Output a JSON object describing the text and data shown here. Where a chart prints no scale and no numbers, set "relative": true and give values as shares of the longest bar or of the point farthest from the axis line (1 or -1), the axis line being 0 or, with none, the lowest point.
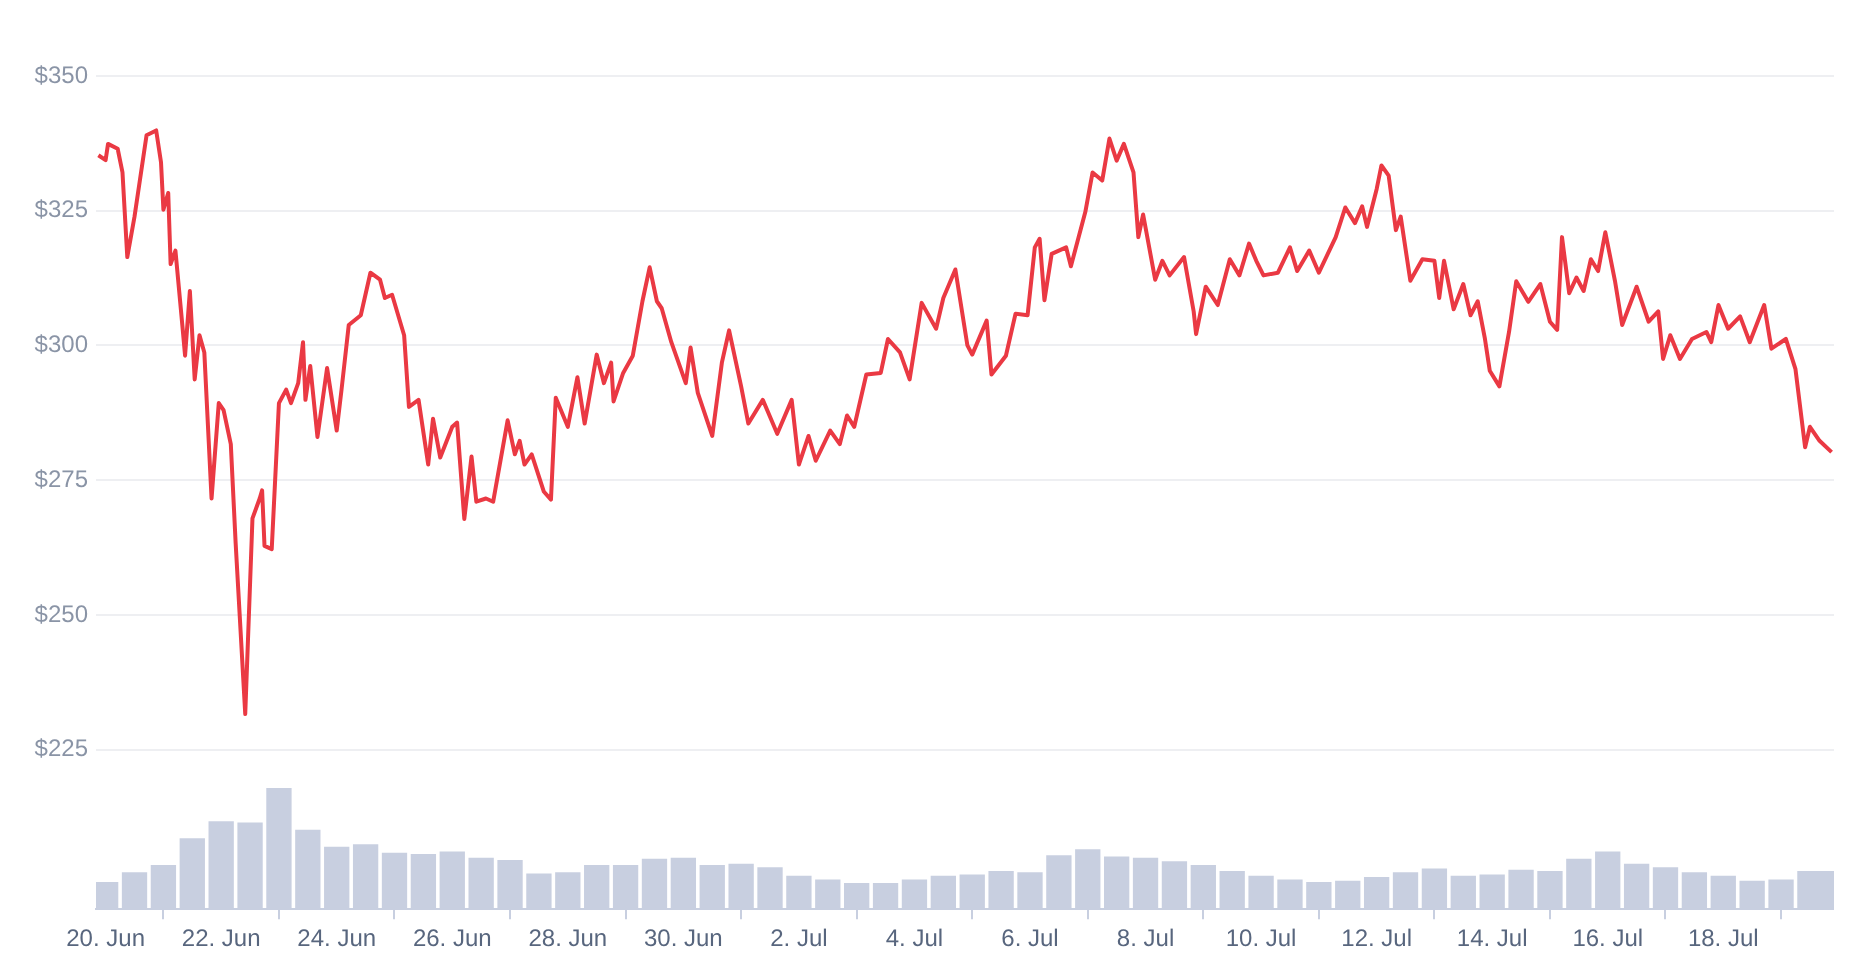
{
  "chart_data": [
    {
      "type": "line",
      "x": [
        "--06-19T21:00",
        "--06-20T00:00",
        "--06-20T01:00",
        "--06-20T05:00",
        "--06-20T07:00",
        "--06-20T09:00",
        "--06-20T12:00",
        "--06-20T17:00",
        "--06-20T21:00",
        "--06-20T23:00",
        "--06-21T00:00",
        "--06-21T02:00",
        "--06-21T03:00",
        "--06-21T05:00",
        "--06-21T08:00",
        "--06-21T09:00",
        "--06-21T11:00",
        "--06-21T13:00",
        "--06-21T15:00",
        "--06-21T17:00",
        "--06-21T20:00",
        "--06-21T23:00",
        "--06-22T01:00",
        "--06-22T04:00",
        "--06-22T06:00",
        "--06-22T10:00",
        "--06-22T13:00",
        "--06-22T16:00",
        "--06-22T17:00",
        "--06-22T18:00",
        "--06-22T21:00",
        "--06-23T00:00",
        "--06-23T03:00",
        "--06-23T05:00",
        "--06-23T08:00",
        "--06-23T10:00",
        "--06-23T11:00",
        "--06-23T13:00",
        "--06-23T16:00",
        "--06-23T20:00",
        "--06-24T00:00",
        "--06-24T02:00",
        "--06-24T05:00",
        "--06-24T10:00",
        "--06-24T14:00",
        "--06-24T18:00",
        "--06-24T20:00",
        "--06-24T23:00",
        "--06-25T04:00",
        "--06-25T06:00",
        "--06-25T10:00",
        "--06-25T14:00",
        "--06-25T16:00",
        "--06-25T19:00",
        "--06-26T00:00",
        "--06-26T02:00",
        "--06-26T05:00",
        "--06-26T08:00",
        "--06-26T10:00",
        "--06-26T14:00",
        "--06-26T17:00",
        "--06-26T23:00",
        "--06-27T02:00",
        "--06-27T04:00",
        "--06-27T06:00",
        "--06-27T09:00",
        "--06-27T14:00",
        "--06-27T17:00",
        "--06-27T19:00",
        "--06-28T00:00",
        "--06-28T04:00",
        "--06-28T07:00",
        "--06-28T12:00",
        "--06-28T15:00",
        "--06-28T18:00",
        "--06-28T19:00",
        "--06-28T23:00",
        "--06-29T03:00",
        "--06-29T07:00",
        "--06-29T10:00",
        "--06-29T13:00",
        "--06-29T15:00",
        "--06-29T19:00",
        "--06-30T01:00",
        "--06-30T03:00",
        "--06-30T06:00",
        "--06-30T12:00",
        "--06-30T16:00",
        "--06-30T19:00",
        "--07-01T00:00",
        "--07-01T03:00",
        "--07-01T09:00",
        "--07-01T15:00",
        "--07-01T21:00",
        "--07-02T00:00",
        "--07-02T04:00",
        "--07-02T07:00",
        "--07-02T13:00",
        "--07-02T17:00",
        "--07-02T20:00",
        "--07-02T23:00",
        "--07-03T04:00",
        "--07-03T10:00",
        "--07-03T13:00",
        "--07-03T18:00",
        "--07-03T22:00",
        "--07-04T03:00",
        "--07-04T09:00",
        "--07-04T12:00",
        "--07-04T17:00",
        "--07-04T22:00",
        "--07-05T00:00",
        "--07-05T06:00",
        "--07-05T08:00",
        "--07-05T14:00",
        "--07-05T18:00",
        "--07-05T23:00",
        "--07-06T02:00",
        "--07-06T04:00",
        "--07-06T06:00",
        "--07-06T09:00",
        "--07-06T15:00",
        "--07-06T17:00",
        "--07-06T23:00",
        "--07-07T02:00",
        "--07-07T06:00",
        "--07-07T09:00",
        "--07-07T12:00",
        "--07-07T15:00",
        "--07-07T19:00",
        "--07-07T21:00",
        "--07-07T23:00",
        "--07-08T04:00",
        "--07-08T07:00",
        "--07-08T10:00",
        "--07-08T16:00",
        "--07-08T20:00",
        "--07-08T21:00",
        "--07-09T01:00",
        "--07-09T06:00",
        "--07-09T11:00",
        "--07-09T15:00",
        "--07-09T19:00",
        "--07-09T22:00",
        "--07-10T01:00",
        "--07-10T07:00",
        "--07-10T12:00",
        "--07-10T15:00",
        "--07-10T20:00",
        "--07-11T00:00",
        "--07-11T07:00",
        "--07-11T11:00",
        "--07-11T15:00",
        "--07-11T18:00",
        "--07-11T20:00",
        "--07-12T00:00",
        "--07-12T02:00",
        "--07-12T05:00",
        "--07-12T08:00",
        "--07-12T10:00",
        "--07-12T14:00",
        "--07-12T19:00",
        "--07-13T00:00",
        "--07-13T02:00",
        "--07-13T04:00",
        "--07-13T08:00",
        "--07-13T12:00",
        "--07-13T15:00",
        "--07-13T18:00",
        "--07-13T21:00",
        "--07-13T23:00",
        "--07-14T03:00",
        "--07-14T07:00",
        "--07-14T10:00",
        "--07-14T15:00",
        "--07-14T20:00",
        "--07-15T00:00",
        "--07-15T03:00",
        "--07-15T05:00",
        "--07-15T08:00",
        "--07-15T11:00",
        "--07-15T14:00",
        "--07-15T17:00",
        "--07-15T20:00",
        "--07-15T23:00",
        "--07-16T03:00",
        "--07-16T06:00",
        "--07-16T12:00",
        "--07-16T17:00",
        "--07-16T21:00",
        "--07-16T23:00",
        "--07-17T02:00",
        "--07-17T06:00",
        "--07-17T11:00",
        "--07-17T17:00",
        "--07-17T19:00",
        "--07-17T22:00",
        "--07-18T02:00",
        "--07-18T07:00",
        "--07-18T11:00",
        "--07-18T17:00",
        "--07-18T20:00",
        "--07-19T02:00",
        "--07-19T06:00",
        "--07-19T10:00",
        "--07-19T12:00",
        "--07-19T16:00",
        "--07-19T21:00"
      ],
      "series": [
        {
          "color": "#ea3943",
          "values": [
            335.3,
            334.4,
            337.4,
            336.5,
            332.1,
            316.4,
            323.9,
            339.0,
            339.9,
            334.0,
            325.2,
            328.3,
            315.1,
            317.6,
            303.1,
            298.1,
            310.1,
            293.7,
            301.9,
            298.7,
            271.6,
            289.3,
            288.0,
            281.7,
            263.4,
            231.6,
            267.9,
            271.6,
            273.1,
            262.8,
            262.2,
            289.3,
            291.8,
            289.3,
            293.0,
            300.6,
            289.9,
            296.2,
            283.0,
            295.8,
            284.2,
            291.8,
            303.8,
            305.6,
            313.5,
            312.2,
            308.8,
            309.4,
            301.9,
            288.6,
            289.9,
            277.9,
            286.4,
            279.2,
            284.9,
            285.7,
            267.8,
            279.4,
            271.0,
            271.6,
            271.0,
            286.1,
            279.8,
            282.3,
            277.9,
            279.8,
            272.9,
            271.4,
            290.3,
            284.9,
            294.1,
            285.5,
            298.3,
            293.0,
            296.8,
            289.6,
            294.9,
            298.1,
            308.2,
            314.5,
            308.2,
            306.9,
            300.6,
            293.0,
            299.6,
            291.2,
            283.2,
            296.8,
            302.8,
            292.4,
            285.5,
            289.9,
            283.6,
            289.9,
            277.9,
            283.2,
            278.6,
            284.2,
            281.7,
            287.0,
            284.9,
            294.6,
            294.9,
            301.2,
            298.7,
            293.7,
            307.9,
            303.1,
            308.8,
            314.1,
            300.0,
            298.3,
            304.6,
            294.6,
            298.1,
            305.9,
            305.6,
            318.2,
            319.8,
            308.4,
            317.0,
            318.2,
            314.7,
            324.8,
            332.1,
            330.6,
            338.4,
            334.3,
            337.4,
            332.1,
            320.1,
            324.3,
            312.2,
            315.7,
            313.0,
            316.4,
            306.3,
            302.1,
            310.9,
            307.5,
            316.0,
            313.0,
            318.9,
            315.7,
            313.0,
            313.5,
            318.2,
            313.8,
            317.6,
            313.5,
            320.1,
            325.6,
            322.7,
            325.8,
            322.0,
            329.0,
            333.4,
            331.5,
            321.4,
            323.9,
            312.0,
            316.0,
            315.7,
            308.8,
            315.7,
            306.7,
            311.4,
            305.6,
            308.2,
            301.2,
            295.3,
            292.4,
            302.5,
            311.9,
            308.1,
            311.4,
            304.4,
            302.9,
            320.1,
            309.7,
            312.6,
            310.1,
            316.0,
            313.8,
            321.0,
            312.0,
            303.8,
            310.9,
            304.4,
            306.3,
            297.5,
            301.9,
            297.5,
            301.2,
            302.5,
            300.6,
            307.5,
            303.1,
            305.4,
            300.6,
            307.5,
            299.4,
            301.2,
            295.6,
            281.1,
            284.9,
            282.3,
            280.2
          ]
        }
      ],
      "xlim": [
        "--06-19T20:00",
        "--07-19T22:00"
      ],
      "ylim": [
        225,
        350
      ],
      "yticks": [
        {
          "value": 225,
          "label": "$225"
        },
        {
          "value": 250,
          "label": "$250"
        },
        {
          "value": 275,
          "label": "$275"
        },
        {
          "value": 300,
          "label": "$300"
        },
        {
          "value": 325,
          "label": "$325"
        },
        {
          "value": 350,
          "label": "$350"
        }
      ],
      "grid": "y",
      "tick_labels": "y",
      "legend": false
    },
    {
      "type": "bar",
      "relative": true,
      "x": [
        "--06-20T00:00",
        "--06-20T12:00",
        "--06-21T00:00",
        "--06-21T12:00",
        "--06-22T00:00",
        "--06-22T12:00",
        "--06-23T00:00",
        "--06-23T12:00",
        "--06-24T00:00",
        "--06-24T12:00",
        "--06-25T00:00",
        "--06-25T12:00",
        "--06-26T00:00",
        "--06-26T12:00",
        "--06-27T00:00",
        "--06-27T12:00",
        "--06-28T00:00",
        "--06-28T12:00",
        "--06-29T00:00",
        "--06-29T12:00",
        "--06-30T00:00",
        "--06-30T12:00",
        "--07-01T00:00",
        "--07-01T12:00",
        "--07-02T00:00",
        "--07-02T12:00",
        "--07-03T00:00",
        "--07-03T12:00",
        "--07-04T00:00",
        "--07-04T12:00",
        "--07-05T00:00",
        "--07-05T12:00",
        "--07-06T00:00",
        "--07-06T12:00",
        "--07-07T00:00",
        "--07-07T12:00",
        "--07-08T00:00",
        "--07-08T12:00",
        "--07-09T00:00",
        "--07-09T12:00",
        "--07-10T00:00",
        "--07-10T12:00",
        "--07-11T00:00",
        "--07-11T12:00",
        "--07-12T00:00",
        "--07-12T12:00",
        "--07-13T00:00",
        "--07-13T12:00",
        "--07-14T00:00",
        "--07-14T12:00",
        "--07-15T00:00",
        "--07-15T12:00",
        "--07-16T00:00",
        "--07-16T12:00",
        "--07-17T00:00",
        "--07-17T12:00",
        "--07-18T00:00",
        "--07-18T12:00",
        "--07-19T00:00",
        "--07-19T12:00",
        "--07-19T19:00"
      ],
      "series": [
        {
          "color": "#c8cfe0",
          "values": [
            0.22,
            0.3,
            0.36,
            0.58,
            0.72,
            0.71,
            1,
            0.65,
            0.51,
            0.53,
            0.46,
            0.45,
            0.47,
            0.42,
            0.4,
            0.29,
            0.3,
            0.36,
            0.36,
            0.41,
            0.42,
            0.36,
            0.37,
            0.34,
            0.27,
            0.24,
            0.21,
            0.21,
            0.24,
            0.27,
            0.28,
            0.31,
            0.3,
            0.44,
            0.49,
            0.43,
            0.42,
            0.39,
            0.36,
            0.31,
            0.27,
            0.24,
            0.22,
            0.23,
            0.26,
            0.3,
            0.33,
            0.27,
            0.28,
            0.32,
            0.31,
            0.41,
            0.47,
            0.37,
            0.34,
            0.3,
            0.27,
            0.23,
            0.24,
            0.31,
            0.31
          ]
        }
      ],
      "xlim": [
        "--06-19T20:00",
        "--07-19T22:00"
      ],
      "xticks": [
        {
          "value": "--06-20",
          "label": "20. Jun"
        },
        {
          "value": "--06-22",
          "label": "22. Jun"
        },
        {
          "value": "--06-24",
          "label": "24. Jun"
        },
        {
          "value": "--06-26",
          "label": "26. Jun"
        },
        {
          "value": "--06-28",
          "label": "28. Jun"
        },
        {
          "value": "--06-30",
          "label": "30. Jun"
        },
        {
          "value": "--07-02",
          "label": "2. Jul"
        },
        {
          "value": "--07-04",
          "label": "4. Jul"
        },
        {
          "value": "--07-06",
          "label": "6. Jul"
        },
        {
          "value": "--07-08",
          "label": "8. Jul"
        },
        {
          "value": "--07-10",
          "label": "10. Jul"
        },
        {
          "value": "--07-12",
          "label": "12. Jul"
        },
        {
          "value": "--07-14",
          "label": "14. Jul"
        },
        {
          "value": "--07-16",
          "label": "16. Jul"
        },
        {
          "value": "--07-18",
          "label": "18. Jul"
        }
      ],
      "tick_labels": "x",
      "legend": false
    }
  ]
}
